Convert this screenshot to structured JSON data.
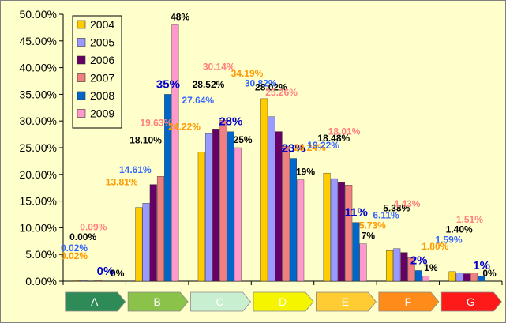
{
  "chart_data": {
    "type": "bar",
    "categories": [
      "A",
      "B",
      "C",
      "D",
      "E",
      "F",
      "G"
    ],
    "category_colors": [
      "#2e8b57",
      "#8bc34a",
      "#c8f0d0",
      "#f5f500",
      "#ffcc33",
      "#ff8c1a",
      "#ff1a1a"
    ],
    "series": [
      {
        "name": "2004",
        "color": "#ffcc00",
        "values": [
          0.02,
          13.81,
          24.22,
          34.19,
          20.24,
          5.73,
          1.8
        ]
      },
      {
        "name": "2005",
        "color": "#9999ff",
        "values": [
          0.02,
          14.61,
          27.64,
          30.82,
          19.22,
          6.11,
          1.59
        ]
      },
      {
        "name": "2006",
        "color": "#660066",
        "values": [
          0.0,
          18.1,
          28.52,
          28.02,
          18.48,
          5.38,
          1.4
        ]
      },
      {
        "name": "2007",
        "color": "#f08080",
        "values": [
          0.09,
          19.63,
          30.14,
          25.26,
          18.01,
          4.43,
          1.51
        ]
      },
      {
        "name": "2008",
        "color": "#0066cc",
        "values": [
          0,
          35,
          28,
          23,
          11,
          2,
          1
        ]
      },
      {
        "name": "2009",
        "color": "#ff99cc",
        "values": [
          0,
          48,
          25,
          19,
          7,
          1,
          0
        ]
      }
    ],
    "data_labels": [
      [
        {
          "text": "0.02%",
          "color": "#ff9900"
        },
        {
          "text": "0.02%",
          "color": "#3366ff"
        },
        {
          "text": "0.00%",
          "color": "#000000"
        },
        {
          "text": "0.09%",
          "color": "#ff8080"
        },
        {
          "text": "0%",
          "color": "#0000cc"
        },
        {
          "text": "0%",
          "color": "#000000"
        }
      ],
      [
        {
          "text": "13.81%",
          "color": "#ff9900"
        },
        {
          "text": "14.61%",
          "color": "#3366ff"
        },
        {
          "text": "18.10%",
          "color": "#000000"
        },
        {
          "text": "19.63%",
          "color": "#ff8080"
        },
        {
          "text": "35%",
          "color": "#0000cc"
        },
        {
          "text": "48%",
          "color": "#000000"
        }
      ],
      [
        {
          "text": "24.22%",
          "color": "#ff9900"
        },
        {
          "text": "27.64%",
          "color": "#3366ff"
        },
        {
          "text": "28.52%",
          "color": "#000000"
        },
        {
          "text": "30.14%",
          "color": "#ff8080"
        },
        {
          "text": "28%",
          "color": "#0000cc"
        },
        {
          "text": "25%",
          "color": "#000000"
        }
      ],
      [
        {
          "text": "34.19%",
          "color": "#ff9900"
        },
        {
          "text": "30.82%",
          "color": "#3366ff"
        },
        {
          "text": "28.02%",
          "color": "#000000"
        },
        {
          "text": "25.26%",
          "color": "#ff8080"
        },
        {
          "text": "23%",
          "color": "#0000cc"
        },
        {
          "text": "19%",
          "color": "#000000"
        }
      ],
      [
        {
          "text": "20.24%",
          "color": "#ff9900"
        },
        {
          "text": "19.22%",
          "color": "#3366ff"
        },
        {
          "text": "18.48%",
          "color": "#000000"
        },
        {
          "text": "18.01%",
          "color": "#ff8080"
        },
        {
          "text": "11%",
          "color": "#0000cc"
        },
        {
          "text": "7%",
          "color": "#000000"
        }
      ],
      [
        {
          "text": "5.73%",
          "color": "#ff9900"
        },
        {
          "text": "6.11%",
          "color": "#3366ff"
        },
        {
          "text": "5.38%",
          "color": "#000000"
        },
        {
          "text": "4.43%",
          "color": "#ff8080"
        },
        {
          "text": "2%",
          "color": "#0000cc"
        },
        {
          "text": "1%",
          "color": "#000000"
        }
      ],
      [
        {
          "text": "1.80%",
          "color": "#ff9900"
        },
        {
          "text": "1.59%",
          "color": "#3366ff"
        },
        {
          "text": "1.40%",
          "color": "#000000"
        },
        {
          "text": "1.51%",
          "color": "#ff8080"
        },
        {
          "text": "1%",
          "color": "#0000cc"
        },
        {
          "text": "0%",
          "color": "#000000"
        }
      ]
    ],
    "ylim": [
      0,
      50
    ],
    "yticks": [
      0,
      5,
      10,
      15,
      20,
      25,
      30,
      35,
      40,
      45,
      50
    ],
    "ytick_labels": [
      "0.00%",
      "5.00%",
      "10.00%",
      "15.00%",
      "20.00%",
      "25.00%",
      "30.00%",
      "35.00%",
      "40.00%",
      "45.00%",
      "50.00%"
    ],
    "grid": false,
    "legend_position": "top-left",
    "plot_background": "#ffffcc",
    "title": "",
    "xlabel": "",
    "ylabel": ""
  }
}
